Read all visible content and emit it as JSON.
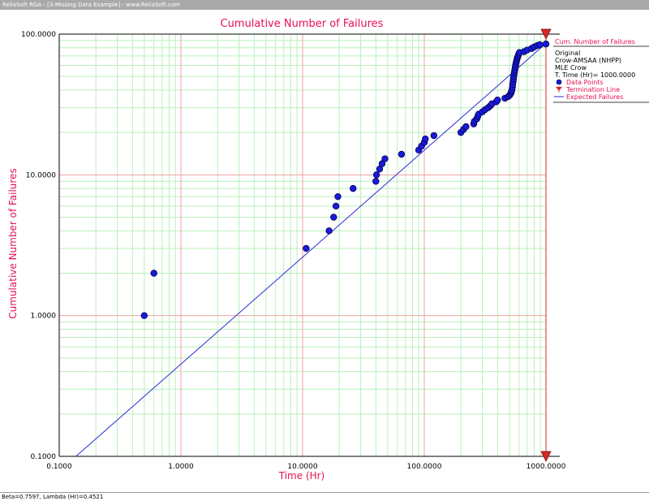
{
  "window": {
    "title": "ReliaSoft RGA - [3-Missing Data Example] - www.ReliaSoft.com"
  },
  "status": {
    "text": "Beta=0.7597, Lambda (Hr)=0.4521"
  },
  "colors": {
    "title": "#e8104f",
    "points": "#1a1adb",
    "points_outline": "#000050",
    "expected_line": "#2b2bd9",
    "termination": "#d42a2a",
    "major_grid": "#f0a0a0",
    "minor_grid": "#b8f0b8"
  },
  "legend": {
    "header": "Cum. Number of Failures",
    "lines": [
      "Original",
      "Crow-AMSAA (NHPP)",
      "MLE Crow",
      "T. Time (Hr)= 1000.0000"
    ],
    "items": [
      {
        "label": "Data Points",
        "marker": "dot"
      },
      {
        "label": "Termination Line",
        "marker": "triangle"
      },
      {
        "label": "Expected Failures",
        "marker": "line"
      }
    ]
  },
  "chart_data": {
    "type": "scatter",
    "title": "Cumulative Number of Failures",
    "xlabel": "Time (Hr)",
    "ylabel": "Cumulative Number of Failures",
    "x_scale": "log",
    "y_scale": "log",
    "xlim": [
      0.1,
      1000
    ],
    "ylim": [
      0.1,
      100
    ],
    "x_tick_labels": [
      "0.1000",
      "1.0000",
      "10.0000",
      "100.0000",
      "1000.0000"
    ],
    "y_tick_labels": [
      "0.1000",
      "1.0000",
      "10.0000",
      "100.0000"
    ],
    "grid": true,
    "legend_placement": "top-right",
    "series": [
      {
        "name": "Data Points",
        "kind": "points",
        "points": [
          [
            0.5,
            1
          ],
          [
            0.6,
            2
          ],
          [
            10.7,
            3
          ],
          [
            16.5,
            4
          ],
          [
            18,
            5
          ],
          [
            18.8,
            6
          ],
          [
            19.5,
            7
          ],
          [
            26,
            8
          ],
          [
            40,
            9
          ],
          [
            40.5,
            10
          ],
          [
            43,
            11
          ],
          [
            45,
            12
          ],
          [
            47.5,
            13
          ],
          [
            65,
            14
          ],
          [
            90,
            15
          ],
          [
            95,
            16
          ],
          [
            100,
            17
          ],
          [
            102,
            18
          ],
          [
            120,
            19
          ],
          [
            200,
            20
          ],
          [
            210,
            21
          ],
          [
            220,
            22
          ],
          [
            255,
            23
          ],
          [
            258,
            24
          ],
          [
            270,
            25
          ],
          [
            275,
            26
          ],
          [
            280,
            27
          ],
          [
            300,
            28
          ],
          [
            315,
            29
          ],
          [
            335,
            30
          ],
          [
            350,
            31
          ],
          [
            360,
            32
          ],
          [
            390,
            33
          ],
          [
            400,
            34
          ],
          [
            460,
            35
          ],
          [
            490,
            36
          ],
          [
            505,
            37
          ],
          [
            515,
            38
          ],
          [
            520,
            39
          ],
          [
            525,
            40
          ],
          [
            530,
            42
          ],
          [
            533,
            44
          ],
          [
            537,
            46
          ],
          [
            540,
            48
          ],
          [
            543,
            50
          ],
          [
            547,
            52
          ],
          [
            551,
            54
          ],
          [
            555,
            56
          ],
          [
            559,
            58
          ],
          [
            563,
            60
          ],
          [
            567,
            62
          ],
          [
            572,
            64
          ],
          [
            577,
            66
          ],
          [
            583,
            68
          ],
          [
            590,
            70
          ],
          [
            597,
            72
          ],
          [
            605,
            74
          ],
          [
            660,
            75
          ],
          [
            700,
            77
          ],
          [
            760,
            79
          ],
          [
            800,
            81
          ],
          [
            850,
            83
          ],
          [
            890,
            84
          ],
          [
            1000,
            85
          ]
        ]
      },
      {
        "name": "Expected Failures",
        "kind": "line",
        "beta": 0.7597,
        "lambda": 0.4521
      },
      {
        "name": "Termination Line",
        "kind": "vline",
        "x": 1000
      }
    ]
  }
}
